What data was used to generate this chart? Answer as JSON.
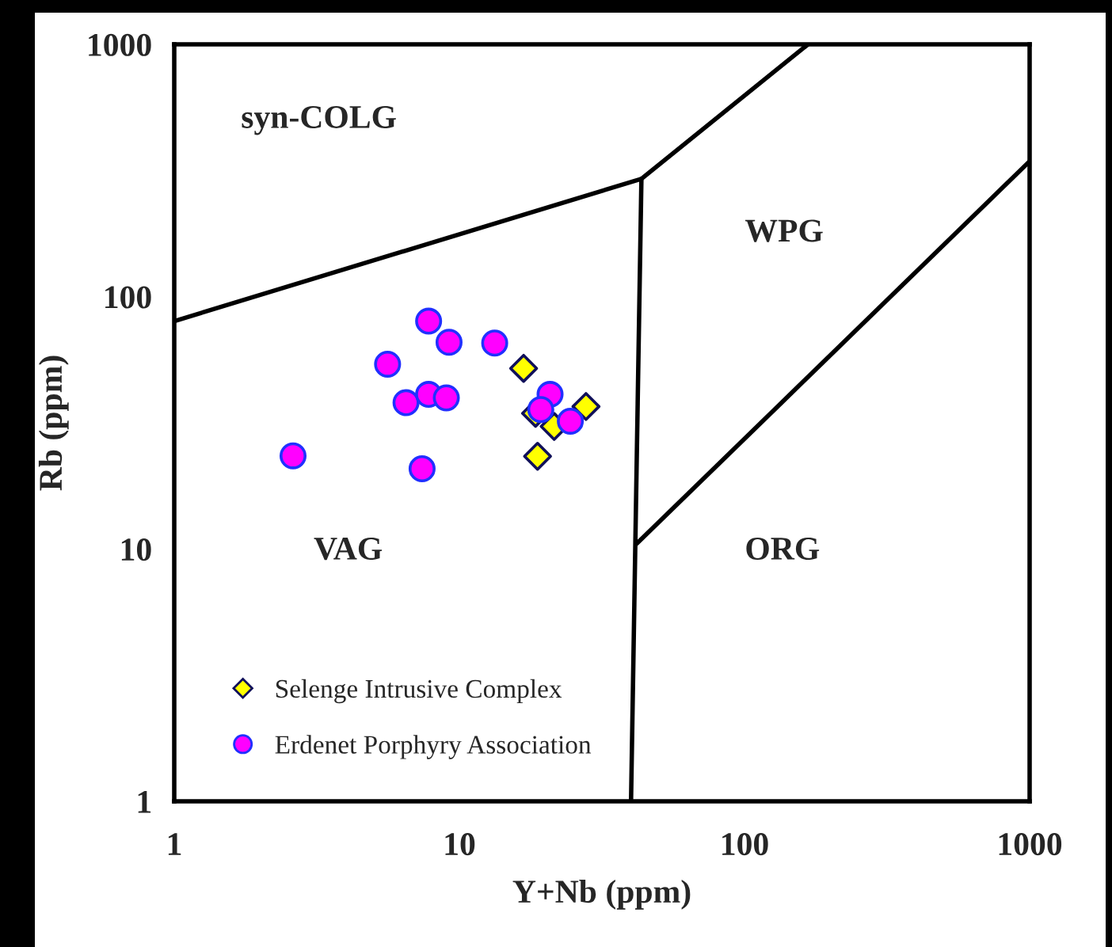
{
  "chart_data": {
    "type": "scatter",
    "xlabel": "Y+Nb (ppm)",
    "ylabel": "Rb (ppm)",
    "log": "xy",
    "xlim": [
      1,
      1000
    ],
    "ylim": [
      1,
      1000
    ],
    "xticks": [
      1,
      10,
      100,
      1000
    ],
    "yticks": [
      1,
      10,
      100,
      1000
    ],
    "grid": false,
    "legend": "bottom left",
    "series": [
      {
        "name": "Selenge Intrusive Complex",
        "marker": "diamond",
        "color": "#ffff00",
        "x": [
          16.8,
          27.8,
          21.5,
          18.8,
          18.5
        ],
        "values": [
          52,
          36.7,
          30.6,
          23.3,
          34.5
        ]
      },
      {
        "name": "Erdenet Porphyry Association",
        "marker": "circle",
        "color": "#ff00ff",
        "x": [
          2.61,
          5.6,
          7.8,
          9.2,
          13.3,
          6.5,
          7.8,
          9.0,
          7.4,
          20.8,
          19.3,
          24.5
        ],
        "values": [
          23.4,
          54,
          80,
          66,
          65.5,
          38,
          41,
          39.7,
          20.8,
          41,
          35.7,
          32.1
        ]
      },
      {
        "type": "line",
        "color": "#000000",
        "marker": "none",
        "x": [
          1,
          43.5,
          167
        ],
        "values": [
          80,
          293,
          1000
        ]
      },
      {
        "type": "line",
        "color": "#000000",
        "marker": "none",
        "x": [
          43.5,
          40
        ],
        "values": [
          293,
          1
        ]
      },
      {
        "type": "line",
        "color": "#000000",
        "marker": "none",
        "x": [
          41.9,
          1000
        ],
        "values": [
          10.5,
          344
        ]
      }
    ],
    "annotations": [
      "syn-COLG",
      "WPG",
      "VAG",
      "ORG"
    ]
  }
}
